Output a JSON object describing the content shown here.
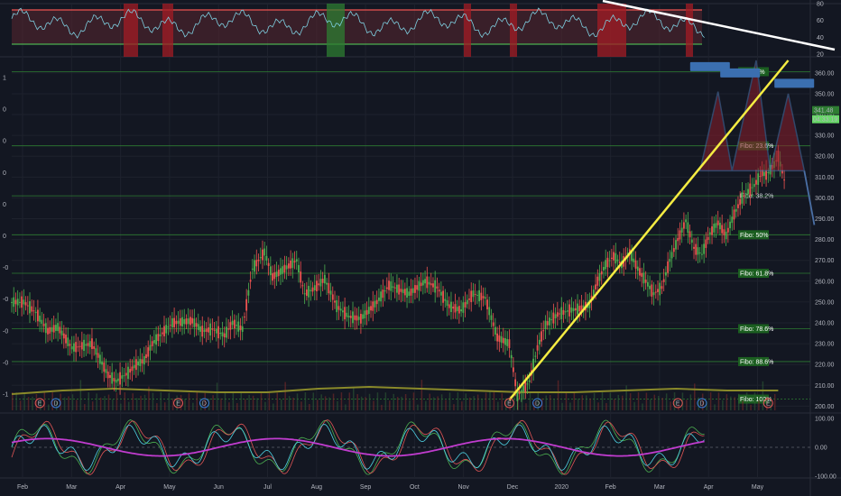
{
  "chart_data": {
    "type": "candlestick",
    "theme": {
      "background": "#131722",
      "up": "#4caf50",
      "down": "#ef5350",
      "grid": "#1e222d",
      "fibo": "#2e7d32",
      "trendline": "#f5ec42",
      "pattern_fill": "#8b1e2b",
      "pattern_edge": "#4a6fa5",
      "sma": "#8a8a2a"
    },
    "price_axis": {
      "ticks": [
        "360.00",
        "350.00",
        "340.00",
        "330.00",
        "320.00",
        "310.00",
        "300.00",
        "290.00",
        "280.00",
        "270.00",
        "260.00",
        "250.00",
        "240.00",
        "230.00",
        "220.00",
        "210.00",
        "200.00"
      ],
      "range": [
        198,
        366
      ]
    },
    "left_axis_ticks": [
      "1",
      "0",
      "0",
      "0",
      "0",
      "0",
      "-0",
      "-0",
      "-0",
      "-0",
      "-1"
    ],
    "time_axis": [
      "Feb",
      "Mar",
      "Apr",
      "May",
      "Jun",
      "Jul",
      "Aug",
      "Sep",
      "Oct",
      "Nov",
      "Dec",
      "2020",
      "Feb",
      "Mar",
      "Apr",
      "May"
    ],
    "current_price": {
      "price": "341.48",
      "countdown": "04:33:19"
    },
    "fibonacci": [
      {
        "label": "Fibo:   0%",
        "price": 360.6
      },
      {
        "label": "Fibo: 23.6%",
        "price": 325.0
      },
      {
        "label": "Fibo: 38.2%",
        "price": 301.0
      },
      {
        "label": "Fibo:   50%",
        "price": 282.3
      },
      {
        "label": "Fibo: 61.8%",
        "price": 263.8
      },
      {
        "label": "Fibo: 78.6%",
        "price": 237.2
      },
      {
        "label": "Fibo: 88.6%",
        "price": 221.4
      },
      {
        "label": "Fibo: 100%",
        "price": 203.4
      }
    ],
    "fibo_plain_label_index": 2,
    "series": [
      {
        "name": "price",
        "x": [
          0,
          6,
          12,
          18,
          23,
          30,
          40,
          48,
          52,
          58,
          62,
          66,
          70,
          80,
          90,
          95,
          100,
          106,
          110,
          115,
          120,
          126,
          130,
          136,
          142,
          146,
          150,
          156,
          162,
          168,
          174,
          182,
          188,
          193,
          198,
          206,
          212,
          218,
          224,
          230,
          236,
          242,
          248,
          252,
          258,
          262,
          266,
          272,
          278,
          284,
          288,
          292,
          296,
          300,
          304,
          308,
          312,
          316,
          320,
          324,
          328,
          332,
          336,
          340,
          344,
          348,
          352,
          356,
          360,
          364,
          368,
          370,
          374,
          376,
          380,
          382
        ],
        "close": [
          250,
          245,
          236,
          238,
          228,
          230,
          215,
          212,
          216,
          220,
          222,
          230,
          240,
          241,
          236,
          237,
          234,
          240,
          237,
          266,
          274,
          262,
          266,
          270,
          254,
          256,
          261,
          248,
          243,
          242,
          250,
          258,
          256,
          254,
          260,
          257,
          248,
          246,
          254,
          252,
          233,
          230,
          205,
          212,
          228,
          239,
          244,
          246,
          247,
          249,
          260,
          268,
          272,
          268,
          274,
          266,
          260,
          254,
          257,
          270,
          280,
          289,
          276,
          273,
          283,
          288,
          282,
          292,
          300,
          304,
          306,
          312,
          311,
          316,
          320,
          305
        ],
        "open": [
          248,
          247,
          239,
          236,
          231,
          229,
          219,
          213,
          214,
          218,
          221,
          228,
          237,
          240,
          237,
          236,
          235,
          238,
          238,
          262,
          270,
          265,
          264,
          268,
          256,
          255,
          259,
          250,
          245,
          243,
          248,
          255,
          257,
          255,
          259,
          258,
          250,
          247,
          252,
          253,
          237,
          231,
          207,
          210,
          225,
          236,
          242,
          245,
          246,
          248,
          257,
          265,
          270,
          269,
          272,
          267,
          262,
          255,
          256,
          267,
          277,
          286,
          278,
          274,
          281,
          286,
          284,
          290,
          297,
          302,
          305,
          310,
          312,
          314,
          318,
          308
        ]
      },
      {
        "name": "volume_sma",
        "values": [
          205,
          207,
          208,
          207,
          206,
          206,
          208,
          209,
          208,
          207,
          206,
          206,
          207,
          208,
          207,
          207
        ]
      }
    ],
    "markers": [
      {
        "label": "E",
        "x": 14
      },
      {
        "label": "D",
        "x": 22
      },
      {
        "label": "E",
        "x": 83
      },
      {
        "label": "D",
        "x": 96
      },
      {
        "label": "E",
        "x": 248
      },
      {
        "label": "D",
        "x": 262
      },
      {
        "label": "E",
        "x": 332
      },
      {
        "label": "D",
        "x": 344
      },
      {
        "label": "E",
        "x": 377
      }
    ],
    "trendline": {
      "from": [
        248,
        203
      ],
      "to": [
        387,
        366
      ]
    },
    "pattern": {
      "name": "head and shoulders",
      "neckline": 313,
      "left_shoulder": 351,
      "head": 366,
      "right_shoulder": 350,
      "target": 287
    },
    "rsi_axis": [
      "80",
      "60",
      "40",
      "20"
    ],
    "oscillator_axis": [
      "100.00",
      "0.00",
      "-100.00"
    ]
  }
}
